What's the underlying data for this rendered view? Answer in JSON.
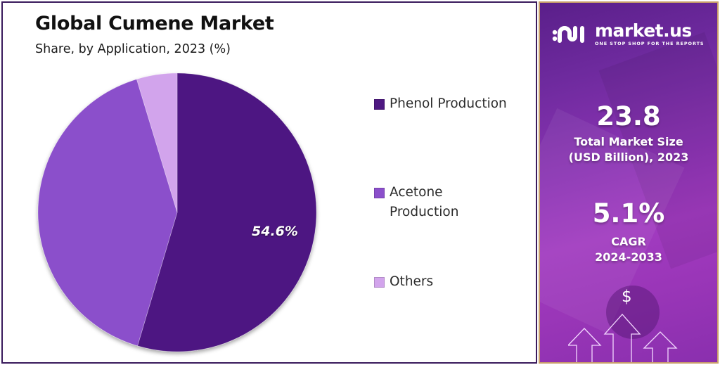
{
  "header": {
    "title": "Global Cumene Market",
    "subtitle": "Share, by Application, 2023 (%)"
  },
  "pie": {
    "slice_label": "54.6%"
  },
  "legend": {
    "items": [
      {
        "label": "Phenol Production",
        "color": "#4e1882"
      },
      {
        "label": "Acetone Production",
        "color": "#8b4fcb"
      },
      {
        "label": "Others",
        "color": "#d2a4ec"
      }
    ]
  },
  "sidebar": {
    "brand": {
      "name": "market.us",
      "tagline": "ONE STOP SHOP FOR THE REPORTS"
    },
    "market_size": {
      "value": "23.8",
      "label_line1": "Total Market Size",
      "label_line2": "(USD Billion), 2023"
    },
    "cagr": {
      "value": "5.1%",
      "label_line1": "CAGR",
      "label_line2": "2024-2033"
    },
    "dollar_symbol": "$"
  },
  "colors": {
    "phenol": "#4e1882",
    "acetone": "#8b4fcb",
    "others": "#d2a4ec",
    "frame": "#3a1a5c",
    "sidebar_border": "#c9a06a"
  },
  "chart_data": {
    "type": "pie",
    "title": "Global Cumene Market",
    "subtitle": "Share, by Application, 2023 (%)",
    "categories": [
      "Phenol Production",
      "Acetone Production",
      "Others"
    ],
    "values": [
      54.6,
      40.7,
      4.7
    ],
    "labels_shown": {
      "Phenol Production": "54.6%"
    },
    "colors": [
      "#4e1882",
      "#8b4fcb",
      "#d2a4ec"
    ],
    "start_angle": "12 o'clock, clockwise",
    "legend_position": "right",
    "annotations": {
      "total_market_size_usd_billion_2023": 23.8,
      "cagr_2024_2033_percent": 5.1
    }
  }
}
